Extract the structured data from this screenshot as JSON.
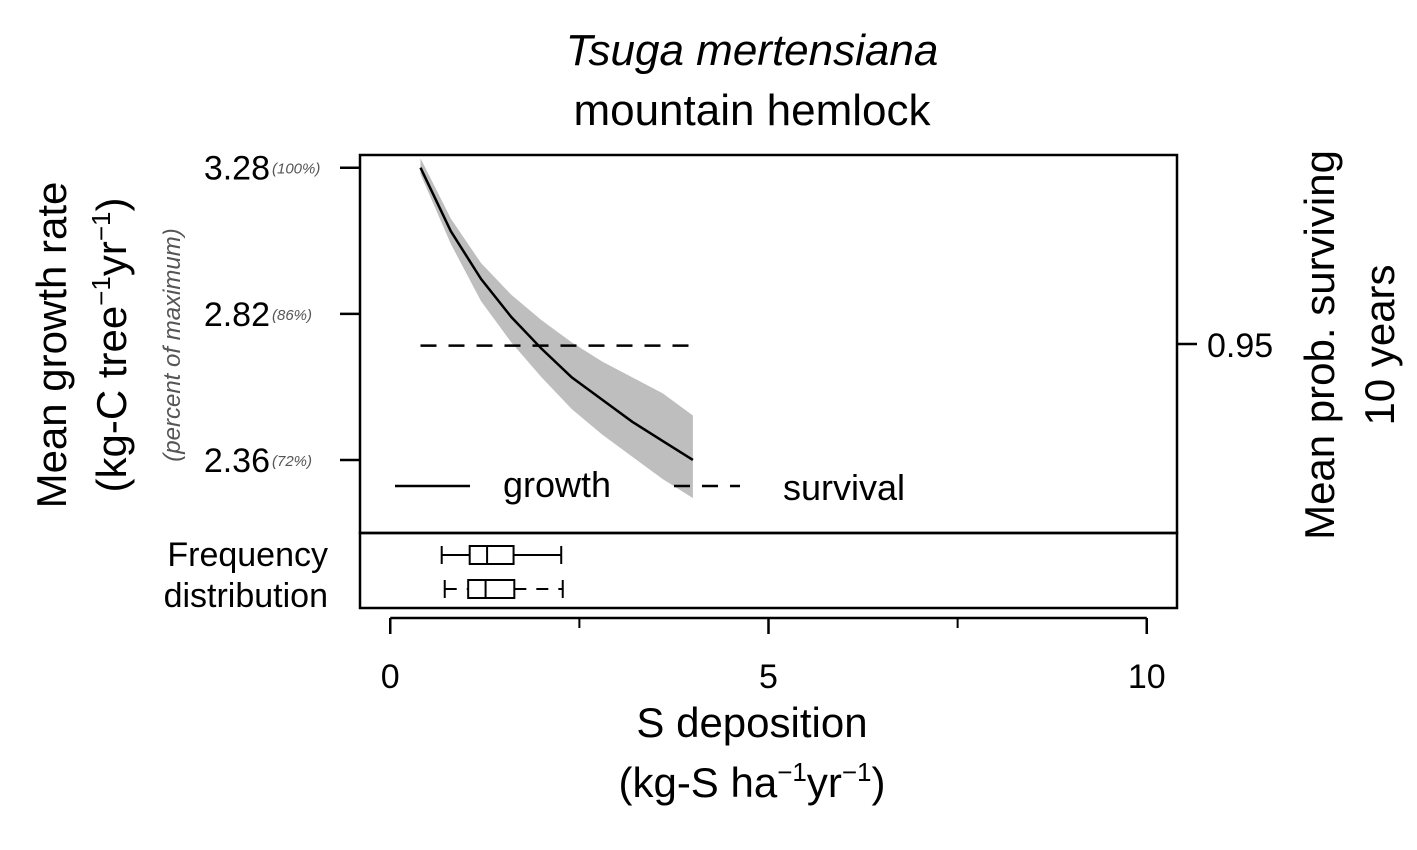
{
  "chart_data": {
    "type": "line",
    "title": {
      "scientific_name": "Tsuga mertensiana",
      "common_name": "mountain hemlock"
    },
    "x_axis": {
      "label_line1": "S deposition",
      "label_line2": "(kg-S ha",
      "label_line2_sup1": "−1",
      "label_line2_mid": "yr",
      "label_line2_sup2": "−1",
      "label_line2_end": ")",
      "range": [
        -0.4,
        10.4
      ],
      "ticks": [
        0,
        5,
        10
      ],
      "minor_ticks": [
        2.5,
        7.5
      ],
      "tick_labels": [
        "0",
        "5",
        "10"
      ]
    },
    "y_axis_left": {
      "label_line1": "Mean growth rate",
      "label_line2_a": "(kg-C tree",
      "label_line2_sup1": "−1",
      "label_line2_b": "yr",
      "label_line2_sup2": "−1",
      "label_line2_c": ")",
      "secondary_label": "(percent of maximum)",
      "range": [
        2.13,
        3.32
      ],
      "ticks": [
        {
          "value": 3.28,
          "label": "3.28",
          "percent": "(100%)"
        },
        {
          "value": 2.82,
          "label": "2.82",
          "percent": "(86%)"
        },
        {
          "value": 2.36,
          "label": "2.36",
          "percent": "(72%)"
        }
      ]
    },
    "y_axis_right": {
      "label_line1": "Mean prob. surviving",
      "label_line2": "10 years",
      "ticks": [
        {
          "value": 0.95,
          "label": "0.95"
        }
      ]
    },
    "series": [
      {
        "name": "growth",
        "style": "solid",
        "x": [
          0.4,
          0.8,
          1.2,
          1.6,
          2.0,
          2.4,
          2.8,
          3.2,
          3.6,
          4.0
        ],
        "y": [
          3.28,
          3.08,
          2.93,
          2.81,
          2.71,
          2.62,
          2.55,
          2.48,
          2.42,
          2.36
        ],
        "ci_lower": [
          3.26,
          3.04,
          2.86,
          2.73,
          2.62,
          2.52,
          2.44,
          2.37,
          2.3,
          2.24
        ],
        "ci_upper": [
          3.31,
          3.12,
          2.98,
          2.88,
          2.8,
          2.73,
          2.67,
          2.62,
          2.57,
          2.5
        ]
      },
      {
        "name": "survival",
        "style": "dashed",
        "x": [
          0.4,
          4.0
        ],
        "y": [
          2.72,
          2.72
        ]
      }
    ],
    "band_color": "#bebebe",
    "legend": {
      "position": "bottom",
      "entries": [
        "growth",
        "survival"
      ]
    },
    "frequency_distribution": {
      "label_line1": "Frequency",
      "label_line2": "distribution",
      "boxplots": [
        {
          "whisker_style": "solid",
          "min": 0.68,
          "q1": 1.05,
          "median": 1.28,
          "q3": 1.63,
          "max": 2.26
        },
        {
          "whisker_style": "dashed",
          "min": 0.72,
          "q1": 1.03,
          "median": 1.26,
          "q3": 1.64,
          "max": 2.28
        }
      ]
    }
  }
}
